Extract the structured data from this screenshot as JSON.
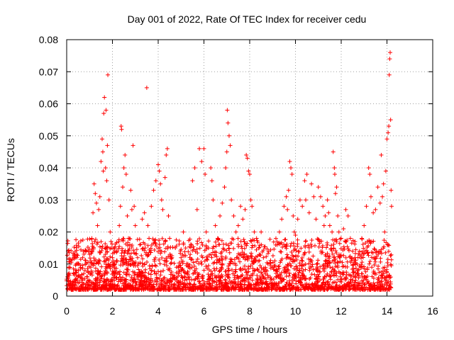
{
  "chart_data": {
    "type": "scatter",
    "title": "Day 001 of 2022, Rate Of TEC Index for receiver cedu",
    "xlabel": "GPS time / hours",
    "ylabel": "ROTI / TECUs",
    "xlim": [
      0,
      16
    ],
    "ylim": [
      0,
      0.08
    ],
    "x_ticks": [
      0,
      2,
      4,
      6,
      8,
      10,
      12,
      14,
      16
    ],
    "x_tick_labels": [
      "0",
      "2",
      "4",
      "6",
      "8",
      "10",
      "12",
      "14",
      "16"
    ],
    "y_ticks": [
      0,
      0.01,
      0.02,
      0.03,
      0.04,
      0.05,
      0.06,
      0.07,
      0.08
    ],
    "y_tick_labels": [
      "0",
      "0.01",
      "0.02",
      "0.03",
      "0.04",
      "0.05",
      "0.06",
      "0.07",
      "0.08"
    ],
    "grid": true,
    "marker": "+",
    "series": [
      {
        "name": "ROTI",
        "color": "#ff0000",
        "points": [
          [
            0.05,
            0.006
          ],
          [
            0.1,
            0.009
          ],
          [
            0.15,
            0.004
          ],
          [
            0.2,
            0.011
          ],
          [
            0.3,
            0.007
          ],
          [
            0.4,
            0.005
          ],
          [
            0.5,
            0.01
          ],
          [
            0.6,
            0.006
          ],
          [
            0.7,
            0.012
          ],
          [
            0.8,
            0.008
          ],
          [
            0.9,
            0.006
          ],
          [
            1.0,
            0.013
          ],
          [
            1.05,
            0.009
          ],
          [
            1.1,
            0.018
          ],
          [
            1.15,
            0.026
          ],
          [
            1.2,
            0.035
          ],
          [
            1.25,
            0.032
          ],
          [
            1.3,
            0.029
          ],
          [
            1.35,
            0.022
          ],
          [
            1.4,
            0.027
          ],
          [
            1.45,
            0.031
          ],
          [
            1.5,
            0.042
          ],
          [
            1.55,
            0.049
          ],
          [
            1.58,
            0.045
          ],
          [
            1.6,
            0.039
          ],
          [
            1.62,
            0.057
          ],
          [
            1.65,
            0.062
          ],
          [
            1.7,
            0.04
          ],
          [
            1.72,
            0.058
          ],
          [
            1.75,
            0.036
          ],
          [
            1.78,
            0.047
          ],
          [
            1.8,
            0.069
          ],
          [
            1.85,
            0.03
          ],
          [
            1.9,
            0.02
          ],
          [
            1.95,
            0.015
          ],
          [
            2.0,
            0.012
          ],
          [
            2.1,
            0.01
          ],
          [
            2.2,
            0.014
          ],
          [
            2.3,
            0.022
          ],
          [
            2.35,
            0.028
          ],
          [
            2.38,
            0.053
          ],
          [
            2.4,
            0.052
          ],
          [
            2.45,
            0.034
          ],
          [
            2.5,
            0.04
          ],
          [
            2.55,
            0.044
          ],
          [
            2.6,
            0.038
          ],
          [
            2.65,
            0.025
          ],
          [
            2.7,
            0.018
          ],
          [
            2.8,
            0.033
          ],
          [
            2.85,
            0.027
          ],
          [
            2.9,
            0.047
          ],
          [
            2.95,
            0.028
          ],
          [
            3.0,
            0.022
          ],
          [
            3.1,
            0.012
          ],
          [
            3.2,
            0.016
          ],
          [
            3.3,
            0.024
          ],
          [
            3.4,
            0.026
          ],
          [
            3.5,
            0.065
          ],
          [
            3.55,
            0.022
          ],
          [
            3.6,
            0.018
          ],
          [
            3.7,
            0.028
          ],
          [
            3.8,
            0.033
          ],
          [
            3.9,
            0.036
          ],
          [
            4.0,
            0.041
          ],
          [
            4.05,
            0.039
          ],
          [
            4.1,
            0.035
          ],
          [
            4.15,
            0.03
          ],
          [
            4.2,
            0.027
          ],
          [
            4.3,
            0.037
          ],
          [
            4.35,
            0.044
          ],
          [
            4.4,
            0.046
          ],
          [
            4.45,
            0.025
          ],
          [
            4.5,
            0.018
          ],
          [
            4.6,
            0.012
          ],
          [
            4.8,
            0.009
          ],
          [
            5.0,
            0.012
          ],
          [
            5.1,
            0.02
          ],
          [
            5.2,
            0.015
          ],
          [
            5.3,
            0.01
          ],
          [
            5.4,
            0.013
          ],
          [
            5.5,
            0.036
          ],
          [
            5.6,
            0.04
          ],
          [
            5.7,
            0.027
          ],
          [
            5.8,
            0.046
          ],
          [
            5.9,
            0.042
          ],
          [
            6.0,
            0.046
          ],
          [
            6.05,
            0.038
          ],
          [
            6.1,
            0.02
          ],
          [
            6.2,
            0.015
          ],
          [
            6.3,
            0.04
          ],
          [
            6.35,
            0.036
          ],
          [
            6.4,
            0.03
          ],
          [
            6.5,
            0.022
          ],
          [
            6.6,
            0.018
          ],
          [
            6.7,
            0.025
          ],
          [
            6.8,
            0.029
          ],
          [
            6.9,
            0.034
          ],
          [
            6.95,
            0.04
          ],
          [
            7.0,
            0.045
          ],
          [
            7.02,
            0.058
          ],
          [
            7.05,
            0.054
          ],
          [
            7.1,
            0.05
          ],
          [
            7.15,
            0.047
          ],
          [
            7.2,
            0.03
          ],
          [
            7.3,
            0.025
          ],
          [
            7.4,
            0.02
          ],
          [
            7.5,
            0.022
          ],
          [
            7.6,
            0.028
          ],
          [
            7.7,
            0.024
          ],
          [
            7.8,
            0.027
          ],
          [
            7.85,
            0.044
          ],
          [
            7.9,
            0.043
          ],
          [
            7.95,
            0.039
          ],
          [
            8.0,
            0.038
          ],
          [
            8.05,
            0.03
          ],
          [
            8.1,
            0.028
          ],
          [
            8.2,
            0.02
          ],
          [
            8.3,
            0.018
          ],
          [
            8.4,
            0.015
          ],
          [
            8.5,
            0.02
          ],
          [
            8.6,
            0.012
          ],
          [
            8.8,
            0.01
          ],
          [
            9.0,
            0.009
          ],
          [
            9.1,
            0.011
          ],
          [
            9.2,
            0.016
          ],
          [
            9.3,
            0.02
          ],
          [
            9.4,
            0.024
          ],
          [
            9.5,
            0.028
          ],
          [
            9.6,
            0.031
          ],
          [
            9.65,
            0.027
          ],
          [
            9.7,
            0.033
          ],
          [
            9.75,
            0.042
          ],
          [
            9.8,
            0.04
          ],
          [
            9.85,
            0.038
          ],
          [
            9.9,
            0.025
          ],
          [
            9.95,
            0.02
          ],
          [
            10.0,
            0.019
          ],
          [
            10.1,
            0.024
          ],
          [
            10.2,
            0.03
          ],
          [
            10.3,
            0.028
          ],
          [
            10.4,
            0.036
          ],
          [
            10.45,
            0.03
          ],
          [
            10.5,
            0.038
          ],
          [
            10.6,
            0.026
          ],
          [
            10.7,
            0.035
          ],
          [
            10.8,
            0.031
          ],
          [
            10.9,
            0.024
          ],
          [
            11.0,
            0.034
          ],
          [
            11.1,
            0.031
          ],
          [
            11.2,
            0.028
          ],
          [
            11.25,
            0.022
          ],
          [
            11.3,
            0.025
          ],
          [
            11.4,
            0.03
          ],
          [
            11.45,
            0.026
          ],
          [
            11.5,
            0.022
          ],
          [
            11.6,
            0.02
          ],
          [
            11.65,
            0.045
          ],
          [
            11.7,
            0.04
          ],
          [
            11.72,
            0.038
          ],
          [
            11.75,
            0.032
          ],
          [
            11.8,
            0.034
          ],
          [
            11.85,
            0.025
          ],
          [
            11.9,
            0.02
          ],
          [
            12.0,
            0.018
          ],
          [
            12.1,
            0.021
          ],
          [
            12.2,
            0.027
          ],
          [
            12.3,
            0.025
          ],
          [
            12.4,
            0.018
          ],
          [
            12.5,
            0.014
          ],
          [
            12.6,
            0.012
          ],
          [
            12.7,
            0.01
          ],
          [
            12.8,
            0.014
          ],
          [
            12.9,
            0.018
          ],
          [
            13.0,
            0.022
          ],
          [
            13.1,
            0.028
          ],
          [
            13.2,
            0.04
          ],
          [
            13.25,
            0.038
          ],
          [
            13.3,
            0.031
          ],
          [
            13.4,
            0.026
          ],
          [
            13.5,
            0.027
          ],
          [
            13.6,
            0.034
          ],
          [
            13.7,
            0.029
          ],
          [
            13.75,
            0.044
          ],
          [
            13.8,
            0.031
          ],
          [
            13.85,
            0.035
          ],
          [
            13.9,
            0.02
          ],
          [
            13.95,
            0.039
          ],
          [
            14.0,
            0.049
          ],
          [
            14.05,
            0.051
          ],
          [
            14.08,
            0.053
          ],
          [
            14.1,
            0.069
          ],
          [
            14.12,
            0.074
          ],
          [
            14.14,
            0.076
          ],
          [
            14.16,
            0.055
          ],
          [
            14.18,
            0.033
          ],
          [
            14.2,
            0.028
          ]
        ]
      }
    ]
  }
}
